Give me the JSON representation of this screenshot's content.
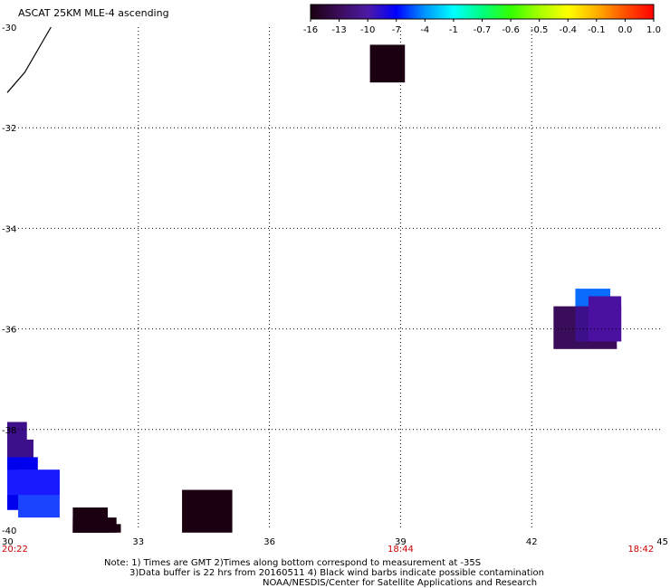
{
  "title": "ASCAT 25KM MLE-4 ascending",
  "colorbar": {
    "labels": [
      "-16",
      "-13",
      "-10",
      "-7",
      "-4",
      "-1",
      "-0.7",
      "-0.6",
      "-0.5",
      "-0.4",
      "-0.1",
      "0.0",
      "1.0"
    ],
    "colors": [
      "#1a0010",
      "#3a0d5a",
      "#4d1aa6",
      "#0000ff",
      "#0096ff",
      "#00ffff",
      "#00ff80",
      "#33ff00",
      "#a6ff00",
      "#ffff00",
      "#ffb000",
      "#ff5000",
      "#ff0000"
    ]
  },
  "map": {
    "lon_range": [
      30,
      45
    ],
    "lat_range": [
      -40,
      -30
    ],
    "lon_ticks": [
      "30",
      "33",
      "36",
      "39",
      "42",
      "45"
    ],
    "lat_ticks": [
      "-30",
      "-32",
      "-34",
      "-36",
      "-38",
      "-40"
    ],
    "times": [
      {
        "label": "20:22",
        "lon": 30
      },
      {
        "label": "18:44",
        "lon": 39
      },
      {
        "label": "18:42",
        "lon": 44.5
      }
    ],
    "time_color": "#cc0000",
    "cells": [
      {
        "lon": [
          38.3,
          39.1
        ],
        "lat": [
          -31.1,
          -30.35
        ],
        "color": "#1a0010"
      },
      {
        "lon": [
          42.5,
          43.95
        ],
        "lat": [
          -36.4,
          -35.55
        ],
        "color": "#3a0d5a"
      },
      {
        "lon": [
          43.0,
          43.8
        ],
        "lat": [
          -35.55,
          -35.2
        ],
        "color": "#0a6cff"
      },
      {
        "lon": [
          43.0,
          44.05
        ],
        "lat": [
          -36.25,
          -35.55
        ],
        "color": "#3d0f8a"
      },
      {
        "lon": [
          43.3,
          44.05
        ],
        "lat": [
          -36.25,
          -35.35
        ],
        "color": "#4a10a0"
      },
      {
        "lon": [
          30.0,
          30.45
        ],
        "lat": [
          -38.7,
          -37.85
        ],
        "color": "#3d0f8a"
      },
      {
        "lon": [
          30.0,
          30.6
        ],
        "lat": [
          -39.3,
          -38.2
        ],
        "color": "#3d0f8a"
      },
      {
        "lon": [
          30.0,
          30.7
        ],
        "lat": [
          -39.6,
          -38.55
        ],
        "color": "#0000ee"
      },
      {
        "lon": [
          30.25,
          31.2
        ],
        "lat": [
          -39.75,
          -38.8
        ],
        "color": "#1a44ff"
      },
      {
        "lon": [
          30.0,
          31.2
        ],
        "lat": [
          -39.3,
          -38.8
        ],
        "color": "#1a1aff"
      },
      {
        "lon": [
          31.5,
          32.3
        ],
        "lat": [
          -40.05,
          -39.55
        ],
        "color": "#1a0010"
      },
      {
        "lon": [
          31.5,
          32.5
        ],
        "lat": [
          -40.05,
          -39.75
        ],
        "color": "#1a0010"
      },
      {
        "lon": [
          31.5,
          32.6
        ],
        "lat": [
          -40.05,
          -39.88
        ],
        "color": "#1a0010"
      },
      {
        "lon": [
          34.0,
          35.15
        ],
        "lat": [
          -40.05,
          -39.2
        ],
        "color": "#1a0010"
      }
    ],
    "wind_barb": [
      [
        31.0,
        -30.0
      ],
      [
        30.7,
        -30.45
      ],
      [
        30.4,
        -30.9
      ],
      [
        30.0,
        -31.3
      ]
    ]
  },
  "notes": [
    "Note: 1) Times are GMT 2)Times along bottom correspond to measurement at -35S",
    "3)Data buffer is 22 hrs from 20160511 4) Black wind barbs indicate possible contamination",
    "NOAA/NESDIS/Center for Satellite Applications and Research"
  ]
}
